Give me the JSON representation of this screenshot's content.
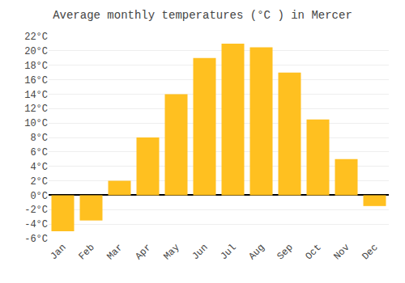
{
  "chart_data": {
    "type": "bar",
    "title": "Average monthly temperatures (°C ) in Mercer",
    "categories": [
      "Jan",
      "Feb",
      "Mar",
      "Apr",
      "May",
      "Jun",
      "Jul",
      "Aug",
      "Sep",
      "Oct",
      "Nov",
      "Dec"
    ],
    "values": [
      -5.0,
      -3.5,
      2.0,
      8.0,
      14.0,
      19.0,
      21.0,
      20.5,
      17.0,
      10.5,
      5.0,
      -1.5
    ],
    "color": "#FFC020",
    "ylim": [
      -6,
      22
    ],
    "yticks": [
      {
        "value": -6,
        "label": "-6°C"
      },
      {
        "value": -4,
        "label": "-4°C"
      },
      {
        "value": -2,
        "label": "-2°C"
      },
      {
        "value": 0,
        "label": "0°C"
      },
      {
        "value": 2,
        "label": "2°C"
      },
      {
        "value": 4,
        "label": "4°C"
      },
      {
        "value": 6,
        "label": "6°C"
      },
      {
        "value": 8,
        "label": "8°C"
      },
      {
        "value": 10,
        "label": "10°C"
      },
      {
        "value": 12,
        "label": "12°C"
      },
      {
        "value": 14,
        "label": "14°C"
      },
      {
        "value": 16,
        "label": "16°C"
      },
      {
        "value": 18,
        "label": "18°C"
      },
      {
        "value": 20,
        "label": "20°C"
      },
      {
        "value": 22,
        "label": "22°C"
      }
    ],
    "grid": true
  }
}
